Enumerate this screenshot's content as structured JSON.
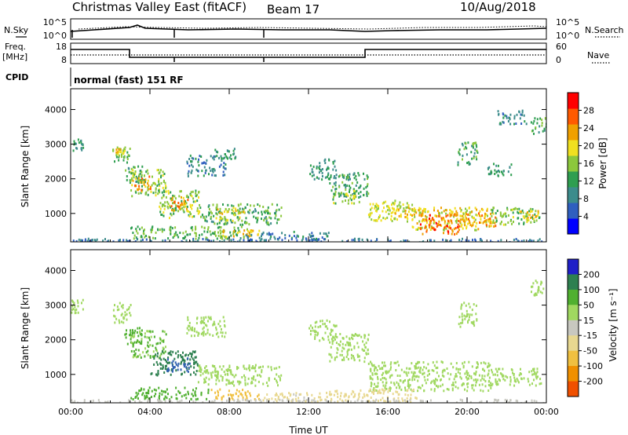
{
  "header": {
    "station": "Christmas Valley East",
    "mode": "(fitACF)",
    "beam": "Beam 17",
    "date": "10/Aug/2018"
  },
  "side_labels": {
    "nsky": "N.Sky",
    "nsearch": "N.Search",
    "freq_line1": "Freq.",
    "freq_line2": "[MHz]",
    "nave": "Nave",
    "cpid": "CPID"
  },
  "noise_panel": {
    "left_ticks": [
      "10^5",
      "10^0"
    ],
    "right_ticks": [
      "10^5",
      "10^0"
    ]
  },
  "freq_panel": {
    "left_ticks": [
      "18",
      "8"
    ],
    "right_ticks": [
      "60",
      "0"
    ]
  },
  "cpid_text": "normal (fast) 151 RF",
  "colors": {
    "power": [
      "#0000ff",
      "#2f5fbf",
      "#3c8c8c",
      "#2e9e50",
      "#8cc83c",
      "#f0e020",
      "#f0a000",
      "#ff5a00",
      "#ff0000"
    ],
    "velocity": [
      "#2020c8",
      "#3060b0",
      "#2e8050",
      "#50b030",
      "#a0d860",
      "#c8c8c0",
      "#e8d890",
      "#f0c040",
      "#f09000",
      "#f05000",
      "#e80000"
    ]
  },
  "chart_data": [
    {
      "type": "heatmap",
      "name_key": "power",
      "xlabel": "",
      "ylabel": "Slant Range [km]",
      "xlim_hours": [
        0,
        24
      ],
      "ylim_km": [
        180,
        4600
      ],
      "yticks": [
        "1000",
        "2000",
        "3000",
        "4000"
      ],
      "colorbar_label": "Power [dB]",
      "colorbar_ticks": [
        "4",
        "8",
        "12",
        "16",
        "20",
        "24",
        "28"
      ],
      "colorbar_range": [
        0,
        32
      ],
      "regions": [
        {
          "t0": 0.0,
          "t1": 0.6,
          "r0": 2800,
          "r1": 3200,
          "level": 12
        },
        {
          "t0": 2.1,
          "t1": 3.0,
          "r0": 2500,
          "r1": 3000,
          "level": 16
        },
        {
          "t0": 2.2,
          "t1": 2.8,
          "r0": 2700,
          "r1": 2900,
          "level": 22
        },
        {
          "t0": 2.7,
          "t1": 3.6,
          "r0": 1900,
          "r1": 2400,
          "level": 14
        },
        {
          "t0": 3.0,
          "t1": 4.8,
          "r0": 1500,
          "r1": 2300,
          "level": 18
        },
        {
          "t0": 3.1,
          "t1": 4.0,
          "r0": 1700,
          "r1": 2100,
          "level": 26
        },
        {
          "t0": 4.4,
          "t1": 6.6,
          "r0": 900,
          "r1": 1700,
          "level": 18
        },
        {
          "t0": 5.0,
          "t1": 5.9,
          "r0": 1100,
          "r1": 1500,
          "level": 27
        },
        {
          "t0": 6.6,
          "t1": 10.6,
          "r0": 700,
          "r1": 1300,
          "level": 15
        },
        {
          "t0": 7.3,
          "t1": 8.8,
          "r0": 800,
          "r1": 1200,
          "level": 22
        },
        {
          "t0": 5.8,
          "t1": 7.8,
          "r0": 2100,
          "r1": 2700,
          "level": 10
        },
        {
          "t0": 7.2,
          "t1": 8.4,
          "r0": 2600,
          "r1": 2900,
          "level": 12
        },
        {
          "t0": 3.0,
          "t1": 9.0,
          "r0": 300,
          "r1": 650,
          "level": 16
        },
        {
          "t0": 7.5,
          "t1": 9.5,
          "r0": 350,
          "r1": 550,
          "level": 24
        },
        {
          "t0": 8.5,
          "t1": 13.0,
          "r0": 250,
          "r1": 500,
          "level": 9
        },
        {
          "t0": 12.0,
          "t1": 13.4,
          "r0": 2000,
          "r1": 2600,
          "level": 12
        },
        {
          "t0": 13.0,
          "t1": 15.0,
          "r0": 1500,
          "r1": 2200,
          "level": 14
        },
        {
          "t0": 13.2,
          "t1": 14.6,
          "r0": 1300,
          "r1": 1700,
          "level": 18
        },
        {
          "t0": 15.0,
          "t1": 17.2,
          "r0": 800,
          "r1": 1400,
          "level": 20
        },
        {
          "t0": 16.0,
          "t1": 17.8,
          "r0": 900,
          "r1": 1200,
          "level": 24
        },
        {
          "t0": 17.0,
          "t1": 21.2,
          "r0": 550,
          "r1": 1200,
          "level": 22
        },
        {
          "t0": 17.6,
          "t1": 19.6,
          "r0": 400,
          "r1": 1000,
          "level": 29
        },
        {
          "t0": 19.6,
          "t1": 21.4,
          "r0": 650,
          "r1": 1050,
          "level": 26
        },
        {
          "t0": 21.2,
          "t1": 23.7,
          "r0": 700,
          "r1": 1200,
          "level": 17
        },
        {
          "t0": 22.6,
          "t1": 23.6,
          "r0": 850,
          "r1": 1100,
          "level": 23
        },
        {
          "t0": 19.5,
          "t1": 20.5,
          "r0": 2400,
          "r1": 3100,
          "level": 14
        },
        {
          "t0": 21.0,
          "t1": 22.2,
          "r0": 2100,
          "r1": 2500,
          "level": 12
        },
        {
          "t0": 21.5,
          "t1": 23.0,
          "r0": 3600,
          "r1": 4000,
          "level": 9
        },
        {
          "t0": 23.2,
          "t1": 24.0,
          "r0": 3300,
          "r1": 3800,
          "level": 14
        },
        {
          "t0": 0.0,
          "t1": 24.0,
          "r0": 180,
          "r1": 300,
          "level": 8
        }
      ]
    },
    {
      "type": "heatmap",
      "name_key": "velocity",
      "xlabel": "Time UT",
      "ylabel": "Slant Range [km]",
      "xticks": [
        "00:00",
        "04:00",
        "08:00",
        "12:00",
        "16:00",
        "20:00",
        "00:00"
      ],
      "xtick_hours": [
        0,
        4,
        8,
        12,
        16,
        20,
        24
      ],
      "xlim_hours": [
        0,
        24
      ],
      "ylim_km": [
        180,
        4600
      ],
      "yticks": [
        "1000",
        "2000",
        "3000",
        "4000"
      ],
      "colorbar_label": "Velocity [m s⁻¹]",
      "colorbar_ticks": [
        "200",
        "100",
        "50",
        "15",
        "-15",
        "-50",
        "-100",
        "-200"
      ],
      "regions": [
        {
          "t0": 0.0,
          "t1": 0.6,
          "r0": 2800,
          "r1": 3200,
          "level": 0
        },
        {
          "t0": 2.1,
          "t1": 3.0,
          "r0": 2500,
          "r1": 3100,
          "level": 0
        },
        {
          "t0": 2.7,
          "t1": 3.6,
          "r0": 1900,
          "r1": 2400,
          "level": 30
        },
        {
          "t0": 3.0,
          "t1": 4.8,
          "r0": 1500,
          "r1": 2300,
          "level": 20
        },
        {
          "t0": 4.0,
          "t1": 6.4,
          "r0": 1000,
          "r1": 1700,
          "level": 80
        },
        {
          "t0": 4.8,
          "t1": 6.0,
          "r0": 1100,
          "r1": 1500,
          "level": 120
        },
        {
          "t0": 6.4,
          "t1": 10.6,
          "r0": 700,
          "r1": 1300,
          "level": 0
        },
        {
          "t0": 5.8,
          "t1": 7.8,
          "r0": 2100,
          "r1": 2700,
          "level": 0
        },
        {
          "t0": 3.0,
          "t1": 7.0,
          "r0": 300,
          "r1": 650,
          "level": 30
        },
        {
          "t0": 7.0,
          "t1": 9.5,
          "r0": 300,
          "r1": 600,
          "level": -140
        },
        {
          "t0": 9.5,
          "t1": 13.0,
          "r0": 250,
          "r1": 500,
          "level": -60
        },
        {
          "t0": 12.0,
          "t1": 13.4,
          "r0": 2000,
          "r1": 2600,
          "level": 0
        },
        {
          "t0": 13.0,
          "t1": 15.0,
          "r0": 1400,
          "r1": 2200,
          "level": 0
        },
        {
          "t0": 15.0,
          "t1": 21.2,
          "r0": 550,
          "r1": 1400,
          "level": 0
        },
        {
          "t0": 13.0,
          "t1": 17.5,
          "r0": 200,
          "r1": 600,
          "level": -70
        },
        {
          "t0": 21.2,
          "t1": 23.7,
          "r0": 700,
          "r1": 1200,
          "level": 0
        },
        {
          "t0": 19.5,
          "t1": 20.5,
          "r0": 2400,
          "r1": 3100,
          "level": 0
        },
        {
          "t0": 23.2,
          "t1": 24.0,
          "r0": 3300,
          "r1": 3800,
          "level": 0
        },
        {
          "t0": 0.0,
          "t1": 24.0,
          "r0": 180,
          "r1": 300,
          "level": -30
        }
      ]
    }
  ]
}
